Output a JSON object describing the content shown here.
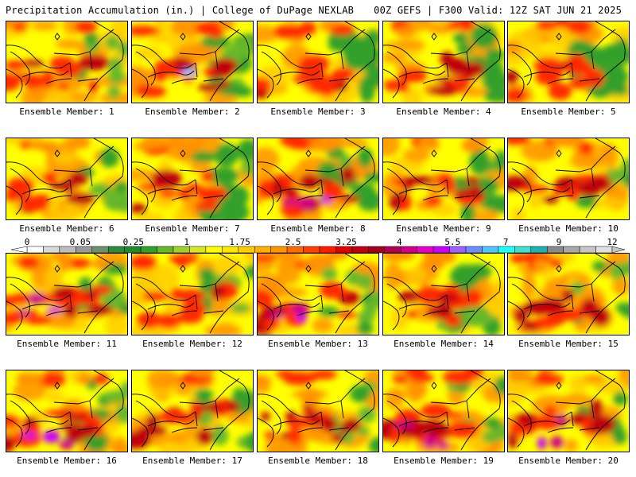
{
  "header": {
    "left": "Precipitation Accumulation (in.) | College of DuPage NEXLAB",
    "right": "00Z GEFS | F300 Valid: 12Z SAT JUN 21 2025"
  },
  "member_label_prefix": "Ensemble Member: ",
  "members": [
    {
      "number": "1",
      "wet": 0.55,
      "east_dry": 0.35,
      "band": 0.55,
      "cyan": 0
    },
    {
      "number": "2",
      "wet": 0.45,
      "east_dry": 0.75,
      "band": 0.7,
      "cyan": 1
    },
    {
      "number": "3",
      "wet": 0.45,
      "east_dry": 0.85,
      "band": 0.5,
      "cyan": 0
    },
    {
      "number": "4",
      "wet": 0.6,
      "east_dry": 0.7,
      "band": 0.7,
      "cyan": 0
    },
    {
      "number": "5",
      "wet": 0.55,
      "east_dry": 0.85,
      "band": 0.6,
      "cyan": 0
    },
    {
      "number": "6",
      "wet": 0.6,
      "east_dry": 0.45,
      "band": 0.6,
      "cyan": 0
    },
    {
      "number": "7",
      "wet": 0.4,
      "east_dry": 0.8,
      "band": 0.45,
      "cyan": 0
    },
    {
      "number": "8",
      "wet": 0.85,
      "east_dry": 0.6,
      "band": 0.9,
      "cyan": 0
    },
    {
      "number": "9",
      "wet": 0.55,
      "east_dry": 0.85,
      "band": 0.55,
      "cyan": 0
    },
    {
      "number": "10",
      "wet": 0.6,
      "east_dry": 0.4,
      "band": 0.7,
      "cyan": 0
    },
    {
      "number": "11",
      "wet": 0.75,
      "east_dry": 0.65,
      "band": 0.75,
      "cyan": 0
    },
    {
      "number": "12",
      "wet": 0.35,
      "east_dry": 0.5,
      "band": 0.35,
      "cyan": 0
    },
    {
      "number": "13",
      "wet": 0.75,
      "east_dry": 0.45,
      "band": 0.75,
      "cyan": 0
    },
    {
      "number": "14",
      "wet": 0.45,
      "east_dry": 0.8,
      "band": 0.5,
      "cyan": 0
    },
    {
      "number": "15",
      "wet": 0.6,
      "east_dry": 0.35,
      "band": 0.7,
      "cyan": 0
    },
    {
      "number": "16",
      "wet": 0.75,
      "east_dry": 0.5,
      "band": 0.8,
      "cyan": 0
    },
    {
      "number": "17",
      "wet": 0.7,
      "east_dry": 0.55,
      "band": 0.7,
      "cyan": 0
    },
    {
      "number": "18",
      "wet": 0.7,
      "east_dry": 0.35,
      "band": 0.75,
      "cyan": 0
    },
    {
      "number": "19",
      "wet": 0.9,
      "east_dry": 0.4,
      "band": 0.85,
      "cyan": 0
    },
    {
      "number": "20",
      "wet": 0.75,
      "east_dry": 0.3,
      "band": 0.7,
      "cyan": 0
    }
  ],
  "colorbar": {
    "tick_labels": [
      "0",
      "0.05",
      "0.25",
      "1",
      "1.75",
      "2.5",
      "3.25",
      "4",
      "5.5",
      "7",
      "9",
      "12"
    ],
    "colors": [
      "#ffffff",
      "#d9d9d9",
      "#bdbdbd",
      "#999999",
      "#6d8f6d",
      "#2e8b3e",
      "#218a30",
      "#33a02c",
      "#66b82a",
      "#9fd12d",
      "#d6e825",
      "#ffff00",
      "#ffe600",
      "#ffcc00",
      "#ffb000",
      "#ff9200",
      "#ff6a00",
      "#ff4000",
      "#ff1a00",
      "#e00000",
      "#c00010",
      "#a00020",
      "#b00050",
      "#d0008a",
      "#e800c8",
      "#c800ff",
      "#a060ff",
      "#6e8cff",
      "#50c8ff",
      "#20ffff",
      "#40e0d0",
      "#20b0b0",
      "#8a8a8a",
      "#a8a8a8",
      "#c6c6c6",
      "#e0e0e0"
    ]
  }
}
